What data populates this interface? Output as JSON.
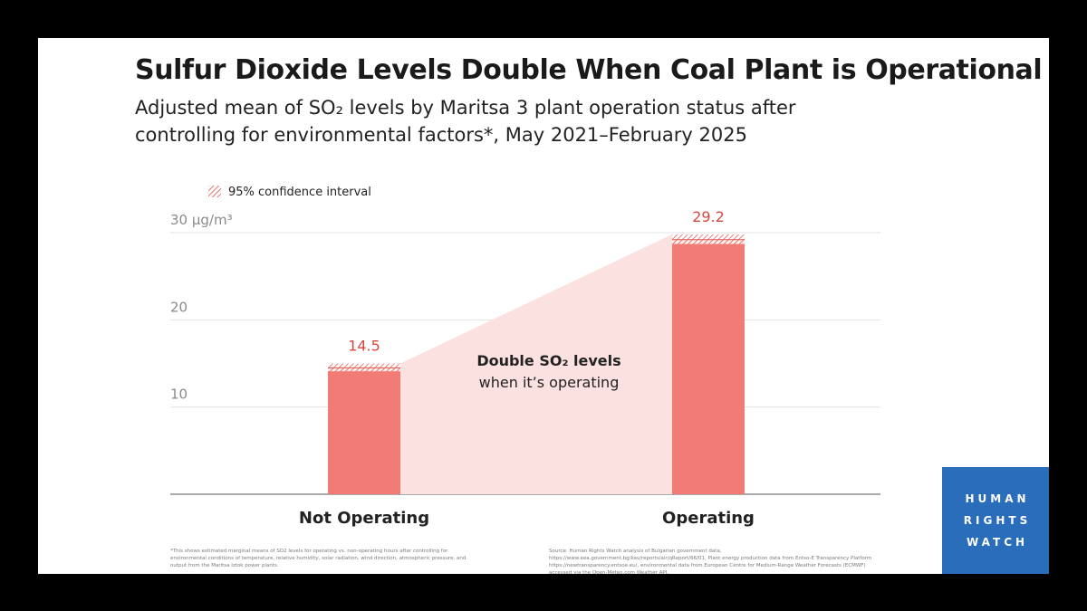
{
  "title": "Sulfur Dioxide Levels Double When Coal Plant is Operational",
  "subtitle": "Adjusted mean of SO₂ levels by Maritsa 3 plant operation status after controlling for environmental factors*, May 2021–February 2025",
  "legend": {
    "ci_label": "95% confidence interval"
  },
  "annotation": {
    "line1": "Double SO₂ levels",
    "line2": "when it’s operating"
  },
  "footnote": "*This shows estimated marginal means of SO2 levels for operating vs. non-operating hours after controlling for environmental conditions of temperature, relative humidity, solar radiation, wind direction, atmospheric pressure, and output from the Maritsa Iztok power plants.",
  "source": "Source: Human Rights Watch analysis of Bulgarian government data, https://www.eea.government.bg/kav/reports/air/qReport/66/01, Plant energy production data from Entso-E Transparency Platform https://newtransparency.entsoe.eu/, environmental data from European Centre for Medium-Range Weather Forecasts (ECMWF) accessed via the Open-Meteo.com Weather API.",
  "logo": {
    "lines": [
      "HUMAN",
      "RIGHTS",
      "WATCH"
    ]
  },
  "colors": {
    "bar": "#f37b75",
    "value_label": "#d9473f",
    "wedge": "#fbe1df",
    "logo_bg": "#2a6ebb",
    "background": "#000000"
  },
  "chart_data": {
    "type": "bar",
    "title": "Sulfur Dioxide Levels Double When Coal Plant is Operational",
    "categories": [
      "Not Operating",
      "Operating"
    ],
    "values": [
      14.5,
      29.2
    ],
    "value_labels": [
      "14.5",
      "29.2"
    ],
    "confidence_interval": [
      [
        14.1,
        15.0
      ],
      [
        28.7,
        29.8
      ]
    ],
    "ylim": [
      0,
      30
    ],
    "y_ticks": [
      10,
      20,
      30
    ],
    "y_tick_labels": [
      "10",
      "20",
      "30 µg/m³"
    ],
    "xlabel": "",
    "ylabel": "µg/m³",
    "grid": true,
    "legend": "top-left"
  }
}
